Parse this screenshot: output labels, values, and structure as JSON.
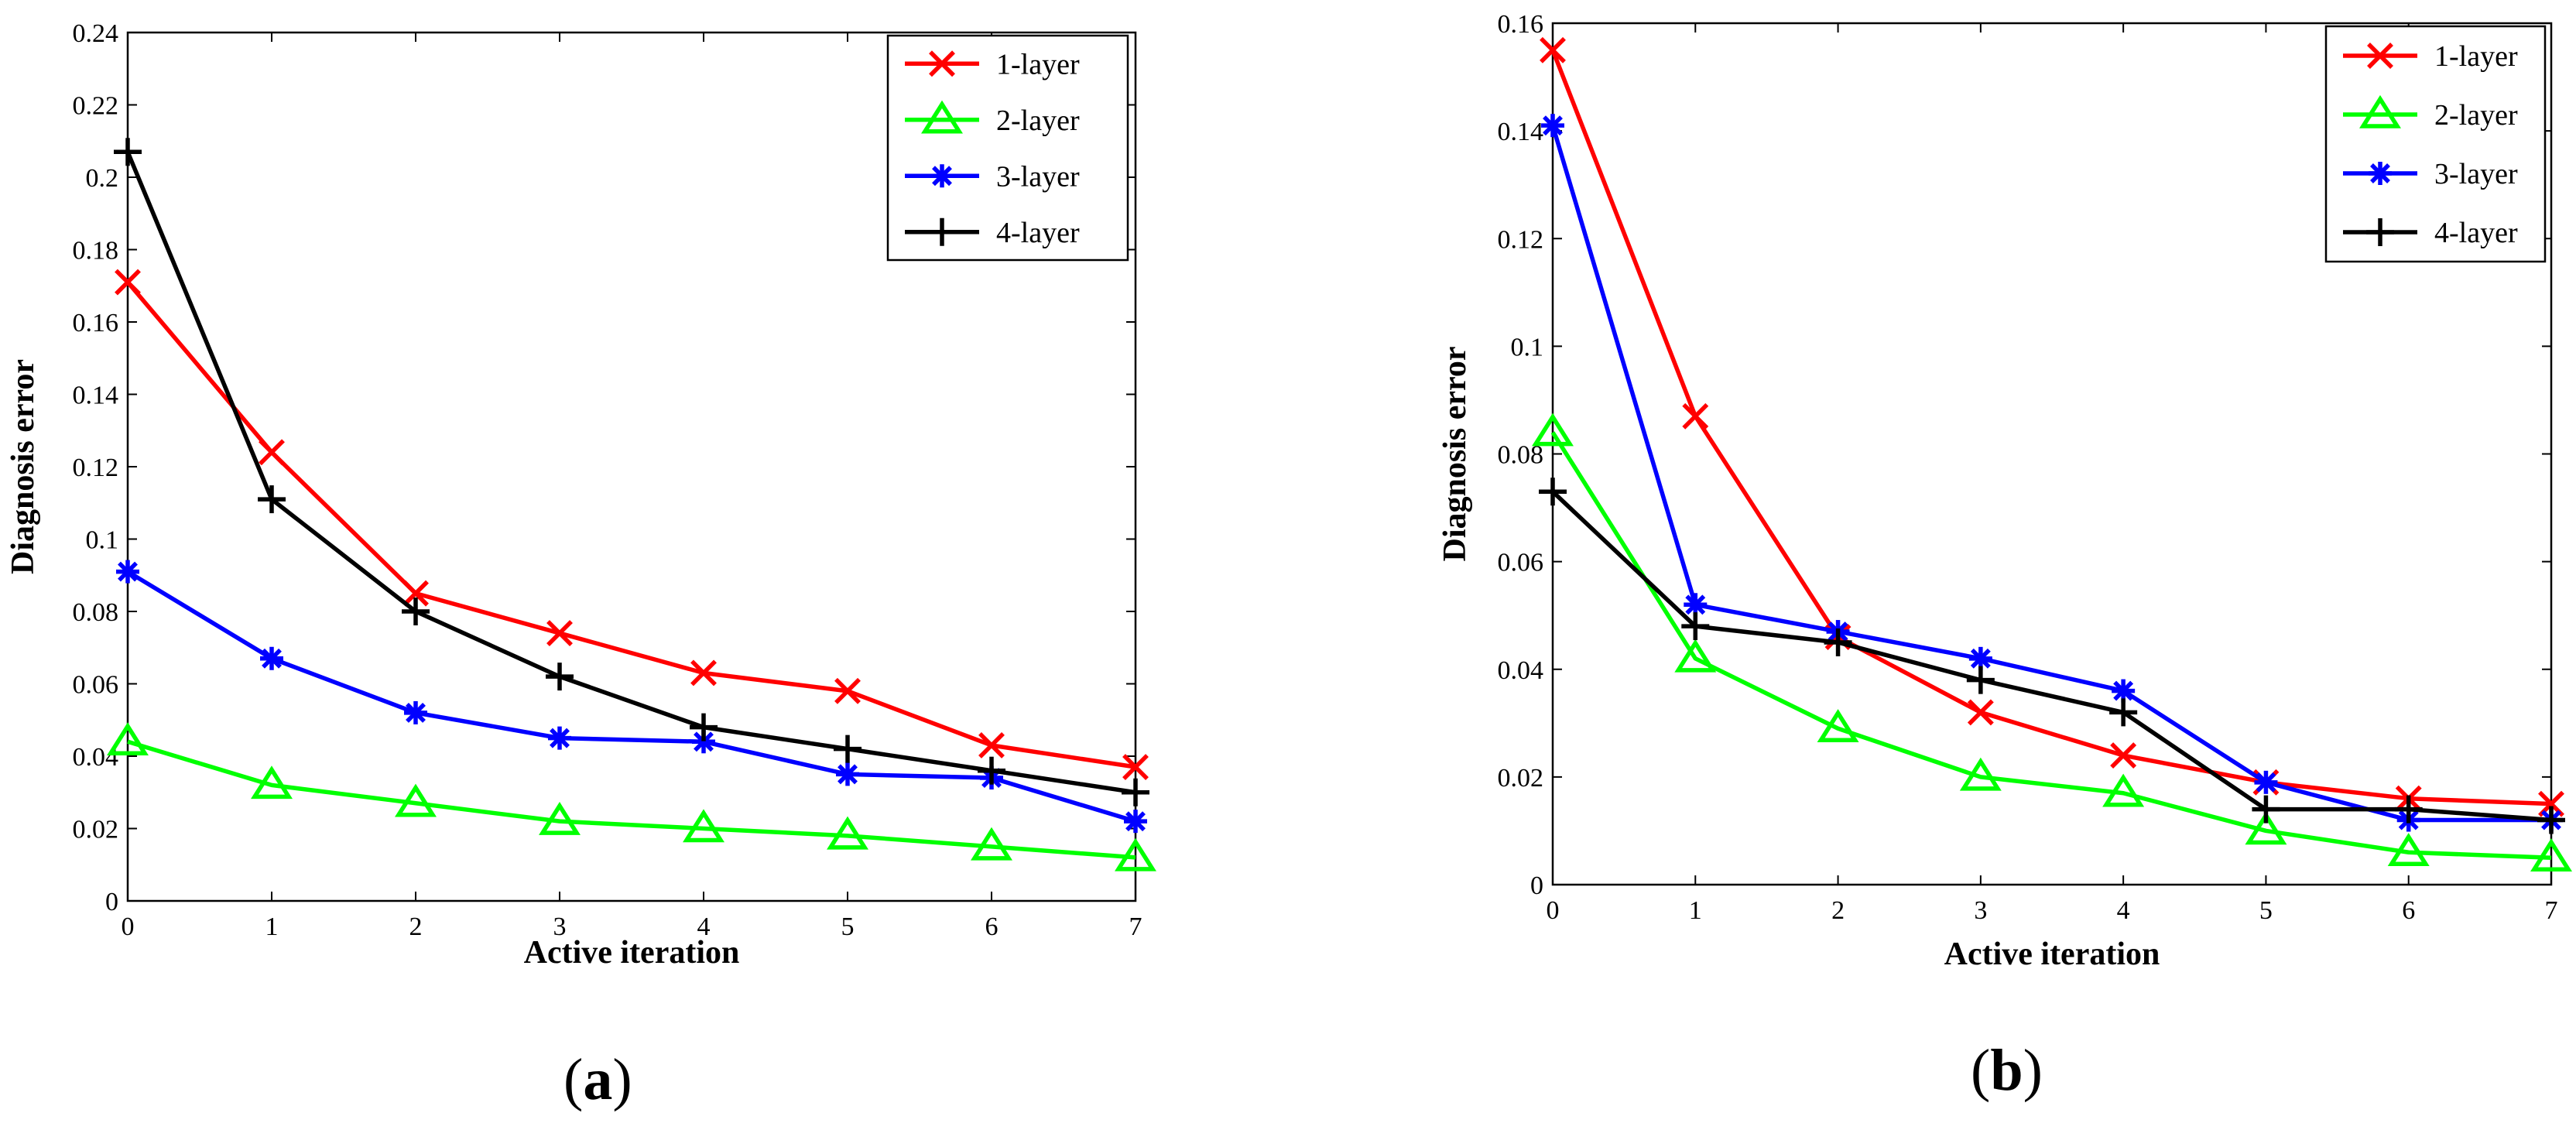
{
  "colors": {
    "1-layer": "#ff0000",
    "2-layer": "#00ff00",
    "3-layer": "#0000ff",
    "4-layer": "#000000"
  },
  "chart_data": [
    {
      "panel": "a",
      "type": "line",
      "xlabel": "Active iteration",
      "ylabel": "Diagnosis error",
      "x": [
        0,
        1,
        2,
        3,
        4,
        5,
        6,
        7
      ],
      "xlim": [
        0,
        7
      ],
      "ylim": [
        0,
        0.24
      ],
      "yticks": [
        0,
        0.02,
        0.04,
        0.06,
        0.08,
        0.1,
        0.12,
        0.14,
        0.16,
        0.18,
        0.2,
        0.22,
        0.24
      ],
      "ytick_labels": [
        "0",
        "0.02",
        "0.04",
        "0.06",
        "0.08",
        "0.1",
        "0.12",
        "0.14",
        "0.16",
        "0.18",
        "0.2",
        "0.22",
        "0.24"
      ],
      "xtick_labels": [
        "0",
        "1",
        "2",
        "3",
        "4",
        "5",
        "6",
        "7"
      ],
      "legend_position": "top-right",
      "series": [
        {
          "name": "1-layer",
          "marker": "x",
          "values": [
            0.171,
            0.124,
            0.085,
            0.074,
            0.063,
            0.058,
            0.043,
            0.037
          ]
        },
        {
          "name": "2-layer",
          "marker": "triangle",
          "values": [
            0.044,
            0.032,
            0.027,
            0.022,
            0.02,
            0.018,
            0.015,
            0.012
          ]
        },
        {
          "name": "3-layer",
          "marker": "star",
          "values": [
            0.091,
            0.067,
            0.052,
            0.045,
            0.044,
            0.035,
            0.034,
            0.022
          ]
        },
        {
          "name": "4-layer",
          "marker": "plus",
          "values": [
            0.207,
            0.111,
            0.08,
            0.062,
            0.048,
            0.042,
            0.036,
            0.03
          ]
        }
      ]
    },
    {
      "panel": "b",
      "type": "line",
      "xlabel": "Active iteration",
      "ylabel": "Diagnosis error",
      "x": [
        0,
        1,
        2,
        3,
        4,
        5,
        6,
        7
      ],
      "xlim": [
        0,
        7
      ],
      "ylim": [
        0,
        0.16
      ],
      "yticks": [
        0,
        0.02,
        0.04,
        0.06,
        0.08,
        0.1,
        0.12,
        0.14,
        0.16
      ],
      "ytick_labels": [
        "0",
        "0.02",
        "0.04",
        "0.06",
        "0.08",
        "0.1",
        "0.12",
        "0.14",
        "0.16"
      ],
      "xtick_labels": [
        "0",
        "1",
        "2",
        "3",
        "4",
        "5",
        "6",
        "7"
      ],
      "legend_position": "top-right",
      "series": [
        {
          "name": "1-layer",
          "marker": "x",
          "values": [
            0.155,
            0.087,
            0.046,
            0.032,
            0.024,
            0.019,
            0.016,
            0.015
          ]
        },
        {
          "name": "2-layer",
          "marker": "triangle",
          "values": [
            0.084,
            0.042,
            0.029,
            0.02,
            0.017,
            0.01,
            0.006,
            0.005
          ]
        },
        {
          "name": "3-layer",
          "marker": "star",
          "values": [
            0.141,
            0.052,
            0.047,
            0.042,
            0.036,
            0.019,
            0.012,
            0.012
          ]
        },
        {
          "name": "4-layer",
          "marker": "plus",
          "values": [
            0.073,
            0.048,
            0.045,
            0.038,
            0.032,
            0.014,
            0.014,
            0.012
          ]
        }
      ]
    }
  ],
  "captions": {
    "a": {
      "open": "(",
      "letter": "a",
      "close": ")"
    },
    "b": {
      "open": "(",
      "letter": "b",
      "close": ")"
    }
  }
}
